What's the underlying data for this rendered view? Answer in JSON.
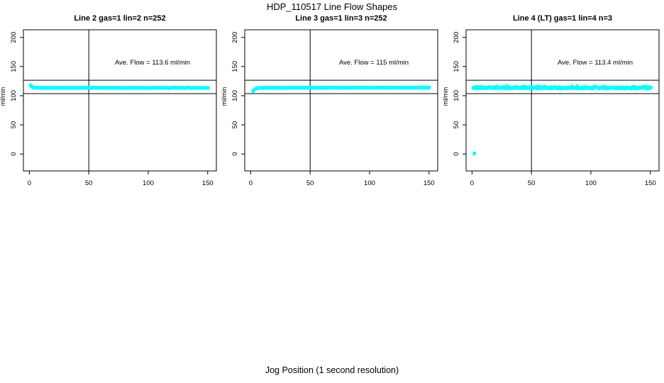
{
  "title": "HDP_110517  Line Flow Shapes",
  "xlabel": "Jog Position (1 second resolution)",
  "colors": {
    "point": "#00FFFF",
    "axis": "#000000",
    "background": "#FFFFFF"
  },
  "chart_data": [
    {
      "type": "scatter",
      "panel_title": "Line 2 gas=1 lin=2 n=252",
      "annotation": "Ave. Flow =  113.6  ml/min",
      "ave_flow": 113.6,
      "n": 252,
      "ylabel": "ml/min",
      "x_ticks": [
        0,
        50,
        100,
        150
      ],
      "y_ticks": [
        0,
        50,
        100,
        150,
        200
      ],
      "x_range_padded": [
        -5,
        157.3
      ],
      "y_range_padded": [
        -29,
        213
      ],
      "v_ref_line_x": 50,
      "h_ref_lines_y": [
        126.5,
        103.5
      ],
      "series": {
        "keypoints": [
          [
            1,
            117.8
          ],
          [
            1.8,
            115.8
          ],
          [
            3,
            114.3
          ],
          [
            6,
            113.6
          ],
          [
            150,
            113.5
          ]
        ],
        "x_start": 1,
        "x_end": 150.5,
        "x_step": 0.6,
        "noise": 0.45,
        "spike_rate": 0,
        "spike_height": 0,
        "outliers": []
      }
    },
    {
      "type": "scatter",
      "panel_title": "Line 3 gas=1 lin=3 n=252",
      "annotation": "Ave. Flow =  115  ml/min",
      "ave_flow": 115,
      "n": 252,
      "ylabel": "ml/min",
      "x_ticks": [
        0,
        50,
        100,
        150
      ],
      "y_ticks": [
        0,
        50,
        100,
        150,
        200
      ],
      "x_range_padded": [
        -5,
        157.3
      ],
      "y_range_padded": [
        -29,
        213
      ],
      "v_ref_line_x": 50,
      "h_ref_lines_y": [
        126.5,
        103.5
      ],
      "series": {
        "keypoints": [
          [
            2,
            107.8
          ],
          [
            3,
            110.5
          ],
          [
            5,
            112.3
          ],
          [
            9,
            113.6
          ],
          [
            150,
            113.9
          ]
        ],
        "x_start": 2,
        "x_end": 150.5,
        "x_step": 0.6,
        "noise": 0.45,
        "spike_rate": 0,
        "spike_height": 0,
        "outliers": []
      }
    },
    {
      "type": "scatter",
      "panel_title": "Line 4 (LT) gas=1 lin=4 n=3",
      "annotation": "Ave. Flow =  113.4  ml/min",
      "ave_flow": 113.4,
      "n": 3,
      "ylabel": "ml/min",
      "x_ticks": [
        0,
        50,
        100,
        150
      ],
      "y_ticks": [
        0,
        50,
        100,
        150,
        200
      ],
      "x_range_padded": [
        -5,
        157.3
      ],
      "y_range_padded": [
        -29,
        213
      ],
      "v_ref_line_x": 50,
      "h_ref_lines_y": [
        126.5,
        103.5
      ],
      "series": {
        "keypoints": [
          [
            1,
            113.8
          ],
          [
            150,
            113.2
          ]
        ],
        "x_start": 1,
        "x_end": 151,
        "x_step": 0.55,
        "noise": 1.3,
        "spike_rate": 0.13,
        "spike_height": 2.4,
        "outliers": [
          [
            2,
            1
          ]
        ]
      }
    }
  ]
}
